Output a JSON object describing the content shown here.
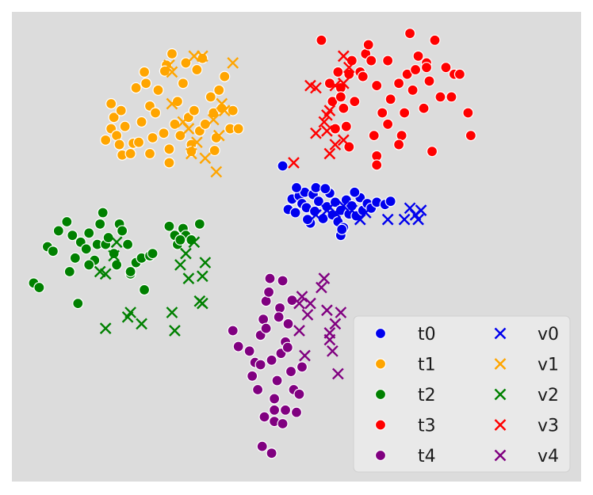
{
  "chart_data": {
    "type": "scatter",
    "title": "",
    "xlabel": "",
    "ylabel": "",
    "axes_visible": false,
    "grid": false,
    "xlim": [
      0,
      100
    ],
    "ylim": [
      0,
      100
    ],
    "background": "#dcdcdc",
    "legend": {
      "placement": "lower-right",
      "columns": 2
    },
    "series": [
      {
        "name": "t0",
        "marker": "circle",
        "color": "#0000ee",
        "points": [
          [
            47.5,
            67.8
          ],
          [
            48.5,
            58.2
          ],
          [
            49.2,
            60.5
          ],
          [
            49.8,
            57.5
          ],
          [
            50.5,
            61.2
          ],
          [
            51.0,
            59.5
          ],
          [
            51.5,
            62.0
          ],
          [
            51.8,
            58.6
          ],
          [
            52.5,
            55.2
          ],
          [
            53.0,
            61.5
          ],
          [
            53.3,
            57.8
          ],
          [
            54.0,
            60.0
          ],
          [
            54.8,
            56.2
          ],
          [
            55.5,
            58.8
          ],
          [
            56.0,
            61.8
          ],
          [
            56.5,
            57.0
          ],
          [
            57.0,
            59.8
          ],
          [
            57.5,
            55.5
          ],
          [
            58.0,
            58.0
          ],
          [
            58.5,
            54.2
          ],
          [
            59.0,
            60.3
          ],
          [
            59.5,
            57.2
          ],
          [
            60.0,
            59.0
          ],
          [
            60.8,
            56.8
          ],
          [
            61.5,
            60.8
          ],
          [
            62.0,
            58.0
          ],
          [
            62.8,
            59.5
          ],
          [
            63.5,
            58.5
          ],
          [
            64.5,
            59.8
          ],
          [
            66.0,
            59.3
          ],
          [
            67.0,
            60.0
          ],
          [
            58.0,
            52.5
          ],
          [
            58.2,
            53.8
          ],
          [
            53.5,
            63.0
          ],
          [
            55.2,
            62.8
          ],
          [
            50.0,
            63.0
          ],
          [
            52.0,
            56.0
          ],
          [
            60.5,
            62.0
          ]
        ]
      },
      {
        "name": "t1",
        "marker": "circle",
        "color": "#ffa500",
        "points": [
          [
            15.5,
            73.5
          ],
          [
            16.5,
            76.0
          ],
          [
            17.0,
            78.5
          ],
          [
            17.5,
            74.5
          ],
          [
            18.0,
            72.5
          ],
          [
            18.3,
            80.0
          ],
          [
            19.0,
            76.5
          ],
          [
            20.5,
            72.8
          ],
          [
            21.0,
            85.0
          ],
          [
            21.5,
            73.0
          ],
          [
            22.0,
            77.5
          ],
          [
            22.5,
            88.5
          ],
          [
            22.8,
            86.0
          ],
          [
            23.5,
            81.0
          ],
          [
            24.0,
            74.0
          ],
          [
            24.5,
            79.5
          ],
          [
            25.0,
            84.5
          ],
          [
            26.0,
            75.0
          ],
          [
            26.5,
            90.0
          ],
          [
            27.5,
            92.5
          ],
          [
            27.0,
            71.5
          ],
          [
            28.0,
            77.0
          ],
          [
            28.5,
            82.0
          ],
          [
            29.0,
            74.5
          ],
          [
            29.5,
            86.0
          ],
          [
            30.0,
            90.5
          ],
          [
            30.5,
            78.5
          ],
          [
            31.0,
            72.5
          ],
          [
            31.5,
            80.0
          ],
          [
            32.0,
            89.0
          ],
          [
            32.5,
            75.5
          ],
          [
            33.0,
            91.5
          ],
          [
            33.5,
            77.0
          ],
          [
            34.5,
            83.0
          ],
          [
            35.0,
            79.5
          ],
          [
            35.5,
            74.0
          ],
          [
            36.0,
            84.5
          ],
          [
            36.5,
            80.5
          ],
          [
            37.0,
            87.5
          ],
          [
            38.0,
            76.0
          ],
          [
            38.5,
            80.0
          ],
          [
            39.5,
            76.0
          ],
          [
            16.5,
            81.5
          ],
          [
            18.5,
            70.2
          ],
          [
            20.0,
            70.5
          ],
          [
            27.0,
            68.5
          ],
          [
            23.5,
            70.5
          ],
          [
            26.2,
            88.7
          ],
          [
            35.2,
            71.2
          ],
          [
            31.0,
            71.0
          ]
        ]
      },
      {
        "name": "t2",
        "marker": "circle",
        "color": "#008000",
        "points": [
          [
            2.5,
            42.0
          ],
          [
            3.5,
            41.0
          ],
          [
            5.0,
            50.0
          ],
          [
            6.0,
            49.0
          ],
          [
            7.0,
            53.5
          ],
          [
            8.5,
            55.5
          ],
          [
            9.5,
            52.5
          ],
          [
            10.0,
            47.5
          ],
          [
            11.0,
            51.0
          ],
          [
            12.0,
            49.5
          ],
          [
            12.5,
            53.0
          ],
          [
            13.5,
            47.0
          ],
          [
            14.0,
            50.5
          ],
          [
            14.5,
            55.0
          ],
          [
            15.0,
            57.5
          ],
          [
            15.5,
            50.5
          ],
          [
            16.0,
            52.0
          ],
          [
            17.0,
            48.5
          ],
          [
            17.5,
            46.0
          ],
          [
            18.0,
            55.0
          ],
          [
            18.5,
            53.5
          ],
          [
            19.5,
            50.5
          ],
          [
            20.0,
            44.0
          ],
          [
            21.0,
            46.5
          ],
          [
            22.0,
            47.5
          ],
          [
            22.5,
            40.5
          ],
          [
            23.5,
            48.0
          ],
          [
            24.0,
            48.5
          ],
          [
            27.0,
            54.5
          ],
          [
            28.0,
            52.5
          ],
          [
            28.5,
            50.5
          ],
          [
            29.5,
            54.0
          ],
          [
            30.0,
            52.5
          ],
          [
            31.0,
            51.5
          ],
          [
            32.5,
            55.0
          ],
          [
            9.0,
            44.5
          ],
          [
            10.5,
            37.5
          ],
          [
            12.5,
            46.0
          ],
          [
            20.0,
            44.5
          ],
          [
            29.0,
            51.5
          ]
        ]
      },
      {
        "name": "t3",
        "marker": "circle",
        "color": "#ff0000",
        "points": [
          [
            54.5,
            95.5
          ],
          [
            56.0,
            86.0
          ],
          [
            56.5,
            82.0
          ],
          [
            57.5,
            88.5
          ],
          [
            58.0,
            85.0
          ],
          [
            58.5,
            80.5
          ],
          [
            59.0,
            76.5
          ],
          [
            59.5,
            88.0
          ],
          [
            60.0,
            91.0
          ],
          [
            60.5,
            82.0
          ],
          [
            61.5,
            88.5
          ],
          [
            62.5,
            92.5
          ],
          [
            63.0,
            94.5
          ],
          [
            63.5,
            91.0
          ],
          [
            64.5,
            85.5
          ],
          [
            64.0,
            74.5
          ],
          [
            64.5,
            70.0
          ],
          [
            64.5,
            68.0
          ],
          [
            65.5,
            79.5
          ],
          [
            66.5,
            77.0
          ],
          [
            67.0,
            82.5
          ],
          [
            68.5,
            86.0
          ],
          [
            69.0,
            74.5
          ],
          [
            69.5,
            79.5
          ],
          [
            70.0,
            88.0
          ],
          [
            70.5,
            97.0
          ],
          [
            71.0,
            84.5
          ],
          [
            72.0,
            92.0
          ],
          [
            73.0,
            80.5
          ],
          [
            73.5,
            90.5
          ],
          [
            74.0,
            86.5
          ],
          [
            74.5,
            71.0
          ],
          [
            75.0,
            95.5
          ],
          [
            76.0,
            83.0
          ],
          [
            77.0,
            89.5
          ],
          [
            78.0,
            83.0
          ],
          [
            78.5,
            88.0
          ],
          [
            79.5,
            88.0
          ],
          [
            81.0,
            79.5
          ],
          [
            81.5,
            74.5
          ],
          [
            57.0,
            76.0
          ],
          [
            58.0,
            83.0
          ],
          [
            62.0,
            87.5
          ],
          [
            66.5,
            91.0
          ],
          [
            71.5,
            89.0
          ],
          [
            73.5,
            89.5
          ],
          [
            59.5,
            72.0
          ],
          [
            68.5,
            72.5
          ]
        ]
      },
      {
        "name": "t4",
        "marker": "circle",
        "color": "#800080",
        "points": [
          [
            38.5,
            31.5
          ],
          [
            39.5,
            28.0
          ],
          [
            41.5,
            27.0
          ],
          [
            42.0,
            21.5
          ],
          [
            42.5,
            24.5
          ],
          [
            43.0,
            18.5
          ],
          [
            43.5,
            30.5
          ],
          [
            44.0,
            34.0
          ],
          [
            44.5,
            38.0
          ],
          [
            45.0,
            40.0
          ],
          [
            45.5,
            25.0
          ],
          [
            46.0,
            16.5
          ],
          [
            46.5,
            20.5
          ],
          [
            47.0,
            36.5
          ],
          [
            47.5,
            42.5
          ],
          [
            48.0,
            29.0
          ],
          [
            48.5,
            33.0
          ],
          [
            49.0,
            22.5
          ],
          [
            49.5,
            18.5
          ],
          [
            50.0,
            13.5
          ],
          [
            50.5,
            17.5
          ],
          [
            51.0,
            23.5
          ],
          [
            46.0,
            11.5
          ],
          [
            47.5,
            11.0
          ],
          [
            43.8,
            6.0
          ],
          [
            45.5,
            4.5
          ],
          [
            48.0,
            14.0
          ],
          [
            44.5,
            32.0
          ],
          [
            46.8,
            34.5
          ],
          [
            47.2,
            26.5
          ],
          [
            48.4,
            27.8
          ],
          [
            49.2,
            38.2
          ],
          [
            45.2,
            43.0
          ],
          [
            46.0,
            14.0
          ],
          [
            43.5,
            24.0
          ],
          [
            44.2,
            12.5
          ]
        ]
      },
      {
        "name": "v0",
        "marker": "x",
        "color": "#0000ee",
        "points": [
          [
            53.5,
            57.0
          ],
          [
            55.5,
            58.0
          ],
          [
            57.0,
            57.5
          ],
          [
            58.5,
            59.0
          ],
          [
            60.0,
            58.0
          ],
          [
            61.5,
            56.0
          ],
          [
            62.5,
            57.5
          ],
          [
            66.5,
            56.0
          ],
          [
            69.5,
            56.0
          ],
          [
            70.5,
            58.5
          ],
          [
            71.5,
            57.0
          ],
          [
            72.5,
            58.0
          ],
          [
            72.0,
            56.0
          ]
        ]
      },
      {
        "name": "v1",
        "marker": "x",
        "color": "#ffa500",
        "points": [
          [
            27.0,
            90.0
          ],
          [
            27.5,
            88.5
          ],
          [
            31.5,
            92.0
          ],
          [
            33.0,
            92.0
          ],
          [
            38.5,
            90.5
          ],
          [
            27.5,
            81.5
          ],
          [
            29.5,
            77.5
          ],
          [
            30.5,
            76.0
          ],
          [
            31.0,
            70.5
          ],
          [
            32.0,
            73.0
          ],
          [
            33.5,
            69.5
          ],
          [
            35.0,
            78.0
          ],
          [
            36.0,
            74.5
          ],
          [
            36.5,
            81.5
          ],
          [
            37.0,
            80.0
          ],
          [
            35.5,
            66.5
          ]
        ]
      },
      {
        "name": "v2",
        "marker": "x",
        "color": "#008000",
        "points": [
          [
            14.5,
            44.5
          ],
          [
            15.5,
            44.0
          ],
          [
            17.0,
            48.0
          ],
          [
            17.5,
            51.0
          ],
          [
            19.5,
            34.5
          ],
          [
            20.0,
            35.5
          ],
          [
            15.5,
            32.0
          ],
          [
            22.0,
            33.0
          ],
          [
            27.5,
            35.5
          ],
          [
            28.0,
            31.5
          ],
          [
            29.0,
            46.0
          ],
          [
            30.0,
            48.5
          ],
          [
            30.5,
            43.0
          ],
          [
            32.5,
            38.0
          ],
          [
            33.0,
            43.5
          ],
          [
            33.5,
            46.5
          ],
          [
            33.0,
            37.5
          ],
          [
            31.5,
            51.0
          ]
        ]
      },
      {
        "name": "v3",
        "marker": "x",
        "color": "#ff0000",
        "points": [
          [
            52.5,
            85.5
          ],
          [
            53.5,
            85.0
          ],
          [
            57.0,
            85.5
          ],
          [
            58.5,
            86.0
          ],
          [
            59.5,
            89.5
          ],
          [
            58.5,
            92.0
          ],
          [
            55.0,
            77.5
          ],
          [
            55.5,
            79.0
          ],
          [
            56.0,
            80.0
          ],
          [
            53.5,
            75.0
          ],
          [
            56.0,
            70.5
          ],
          [
            57.0,
            72.5
          ],
          [
            58.5,
            73.5
          ],
          [
            49.5,
            68.5
          ],
          [
            55.5,
            75.5
          ]
        ]
      },
      {
        "name": "v4",
        "marker": "x",
        "color": "#800080",
        "points": [
          [
            50.5,
            37.5
          ],
          [
            51.0,
            39.0
          ],
          [
            52.0,
            35.0
          ],
          [
            52.5,
            37.5
          ],
          [
            54.5,
            41.0
          ],
          [
            55.0,
            43.0
          ],
          [
            55.5,
            36.0
          ],
          [
            56.0,
            29.5
          ],
          [
            57.0,
            33.0
          ],
          [
            58.0,
            35.5
          ],
          [
            51.5,
            26.0
          ],
          [
            56.5,
            27.0
          ],
          [
            57.5,
            22.0
          ],
          [
            50.5,
            31.5
          ],
          [
            56.0,
            31.0
          ]
        ]
      }
    ]
  },
  "legend_entries": [
    {
      "label": "t0",
      "marker": "circle",
      "color": "#0000ee"
    },
    {
      "label": "t1",
      "marker": "circle",
      "color": "#ffa500"
    },
    {
      "label": "t2",
      "marker": "circle",
      "color": "#008000"
    },
    {
      "label": "t3",
      "marker": "circle",
      "color": "#ff0000"
    },
    {
      "label": "t4",
      "marker": "circle",
      "color": "#800080"
    },
    {
      "label": "v0",
      "marker": "x",
      "color": "#0000ee"
    },
    {
      "label": "v1",
      "marker": "x",
      "color": "#ffa500"
    },
    {
      "label": "v2",
      "marker": "x",
      "color": "#008000"
    },
    {
      "label": "v3",
      "marker": "x",
      "color": "#ff0000"
    },
    {
      "label": "v4",
      "marker": "x",
      "color": "#800080"
    }
  ]
}
